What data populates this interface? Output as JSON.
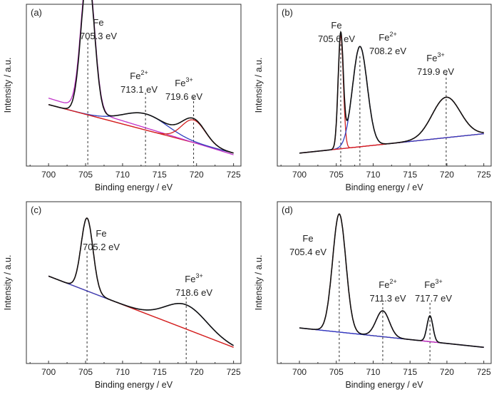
{
  "chart_data": [
    {
      "type": "line",
      "panel_label": "(a)",
      "xlabel": "Binding energy / eV",
      "ylabel": "Intensity / a.u.",
      "xlim": [
        697,
        726
      ],
      "ylim": [
        0,
        1
      ],
      "xticks": [
        700,
        705,
        710,
        715,
        720,
        725
      ],
      "peaks": [
        {
          "name": "Fe",
          "sup": "",
          "value": "705.3 eV",
          "x": 705.3
        },
        {
          "name": "Fe",
          "sup": "2+",
          "value": "713.1 eV",
          "x": 713.1
        },
        {
          "name": "Fe",
          "sup": "3+",
          "value": "719.6 eV",
          "x": 719.6
        }
      ],
      "series": [
        {
          "name": "background",
          "color": "#d42020",
          "shape": "line",
          "x": [
            700,
            725
          ],
          "y": [
            0.38,
            0.08
          ]
        },
        {
          "name": "Fe component",
          "color": "#c030c8",
          "shape": "peak",
          "center": 705.3,
          "width": 0.9,
          "height": 0.87,
          "base": [
            0.42,
            0.07
          ]
        },
        {
          "name": "Fe2+ component",
          "color": "#3040c0",
          "shape": "peak",
          "center": 713.1,
          "width": 3.0,
          "height": 0.1,
          "base": [
            0.38,
            0.08
          ]
        },
        {
          "name": "Fe3+ component",
          "color": "#d42020",
          "shape": "peak",
          "center": 719.6,
          "width": 1.6,
          "height": 0.14,
          "base": [
            0.38,
            0.08
          ]
        },
        {
          "name": "envelope",
          "color": "#111111",
          "shape": "sum",
          "terms": [
            [
              705.3,
              0.9,
              0.87
            ],
            [
              713.1,
              3.0,
              0.1
            ],
            [
              719.6,
              1.6,
              0.14
            ]
          ],
          "base": [
            0.38,
            0.08
          ]
        }
      ]
    },
    {
      "type": "line",
      "panel_label": "(b)",
      "xlabel": "Binding energy / eV",
      "ylabel": "Intensity / a.u.",
      "xlim": [
        697,
        726
      ],
      "ylim": [
        0,
        1
      ],
      "xticks": [
        700,
        705,
        710,
        715,
        720,
        725
      ],
      "peaks": [
        {
          "name": "Fe",
          "sup": "",
          "value": "705.6 eV",
          "x": 705.6
        },
        {
          "name": "Fe",
          "sup": "2+",
          "value": "708.2 eV",
          "x": 708.2
        },
        {
          "name": "Fe",
          "sup": "3+",
          "value": "719.9 eV",
          "x": 719.9
        }
      ],
      "series": [
        {
          "name": "background",
          "color": "#c030c8",
          "shape": "line",
          "x": [
            700,
            725
          ],
          "y": [
            0.08,
            0.2
          ]
        },
        {
          "name": "Fe component",
          "color": "#d42020",
          "shape": "peak",
          "center": 705.6,
          "width": 0.35,
          "height": 0.7,
          "base": [
            0.08,
            0.2
          ]
        },
        {
          "name": "Fe2+ component",
          "color": "#3040c0",
          "shape": "peak",
          "center": 708.2,
          "width": 1.0,
          "height": 0.62,
          "base": [
            0.08,
            0.2
          ]
        },
        {
          "name": "Fe3+ component",
          "color": "#d42020",
          "shape": "peak",
          "center": 719.9,
          "width": 1.9,
          "height": 0.25,
          "base": [
            0.08,
            0.2
          ]
        },
        {
          "name": "envelope",
          "color": "#111111",
          "shape": "sum",
          "terms": [
            [
              705.6,
              0.35,
              0.7
            ],
            [
              708.2,
              1.0,
              0.62
            ],
            [
              719.9,
              1.9,
              0.25
            ]
          ],
          "base": [
            0.08,
            0.2
          ]
        }
      ]
    },
    {
      "type": "line",
      "panel_label": "(c)",
      "xlabel": "Binding energy / eV",
      "ylabel": "Intensity / a.u.",
      "xlim": [
        697,
        726
      ],
      "ylim": [
        0,
        1
      ],
      "xticks": [
        700,
        705,
        710,
        715,
        720,
        725
      ],
      "peaks": [
        {
          "name": "Fe",
          "sup": "",
          "value": "705.2 eV",
          "x": 705.2
        },
        {
          "name": "Fe",
          "sup": "3+",
          "value": "718.6 eV",
          "x": 718.6
        }
      ],
      "series": [
        {
          "name": "background",
          "color": "#d42020",
          "shape": "line",
          "x": [
            700,
            725
          ],
          "y": [
            0.54,
            0.1
          ]
        },
        {
          "name": "Fe component",
          "color": "#d42020",
          "shape": "peak",
          "center": 705.2,
          "width": 0.8,
          "height": 0.45,
          "base": [
            0.54,
            0.1
          ]
        },
        {
          "name": "Fe3+ component",
          "color": "#3040c0",
          "shape": "peak",
          "center": 718.6,
          "width": 2.8,
          "height": 0.15,
          "base": [
            0.54,
            0.1
          ]
        },
        {
          "name": "envelope",
          "color": "#111111",
          "shape": "sum",
          "terms": [
            [
              705.2,
              0.8,
              0.45
            ],
            [
              718.6,
              2.8,
              0.15
            ]
          ],
          "base": [
            0.54,
            0.1
          ]
        }
      ]
    },
    {
      "type": "line",
      "panel_label": "(d)",
      "xlabel": "Binding energy / eV",
      "ylabel": "Intensity / a.u.",
      "xlim": [
        697,
        726
      ],
      "ylim": [
        0,
        1
      ],
      "xticks": [
        700,
        705,
        710,
        715,
        720,
        725
      ],
      "peaks": [
        {
          "name": "Fe",
          "sup": "",
          "value": "705.4 eV",
          "x": 705.4
        },
        {
          "name": "Fe",
          "sup": "2+",
          "value": "711.3 eV",
          "x": 711.3
        },
        {
          "name": "Fe",
          "sup": "3+",
          "value": "717.7 eV",
          "x": 717.7
        }
      ],
      "series": [
        {
          "name": "background",
          "color": "#3040c0",
          "shape": "line",
          "x": [
            700,
            725
          ],
          "y": [
            0.22,
            0.1
          ]
        },
        {
          "name": "Fe component",
          "color": "#d42020",
          "shape": "peak",
          "center": 705.4,
          "width": 0.9,
          "height": 0.73,
          "base": [
            0.22,
            0.1
          ]
        },
        {
          "name": "Fe2+ component",
          "color": "#c030c8",
          "shape": "peak",
          "center": 711.3,
          "width": 0.9,
          "height": 0.16,
          "base": [
            0.22,
            0.1
          ]
        },
        {
          "name": "Fe3+ component",
          "color": "#3040c0",
          "shape": "peak",
          "center": 717.7,
          "width": 0.4,
          "height": 0.16,
          "base": [
            0.22,
            0.1
          ]
        },
        {
          "name": "envelope",
          "color": "#111111",
          "shape": "sum",
          "terms": [
            [
              705.4,
              0.9,
              0.73
            ],
            [
              711.3,
              0.9,
              0.16
            ],
            [
              717.7,
              0.4,
              0.16
            ]
          ],
          "base": [
            0.22,
            0.1
          ]
        }
      ]
    }
  ]
}
